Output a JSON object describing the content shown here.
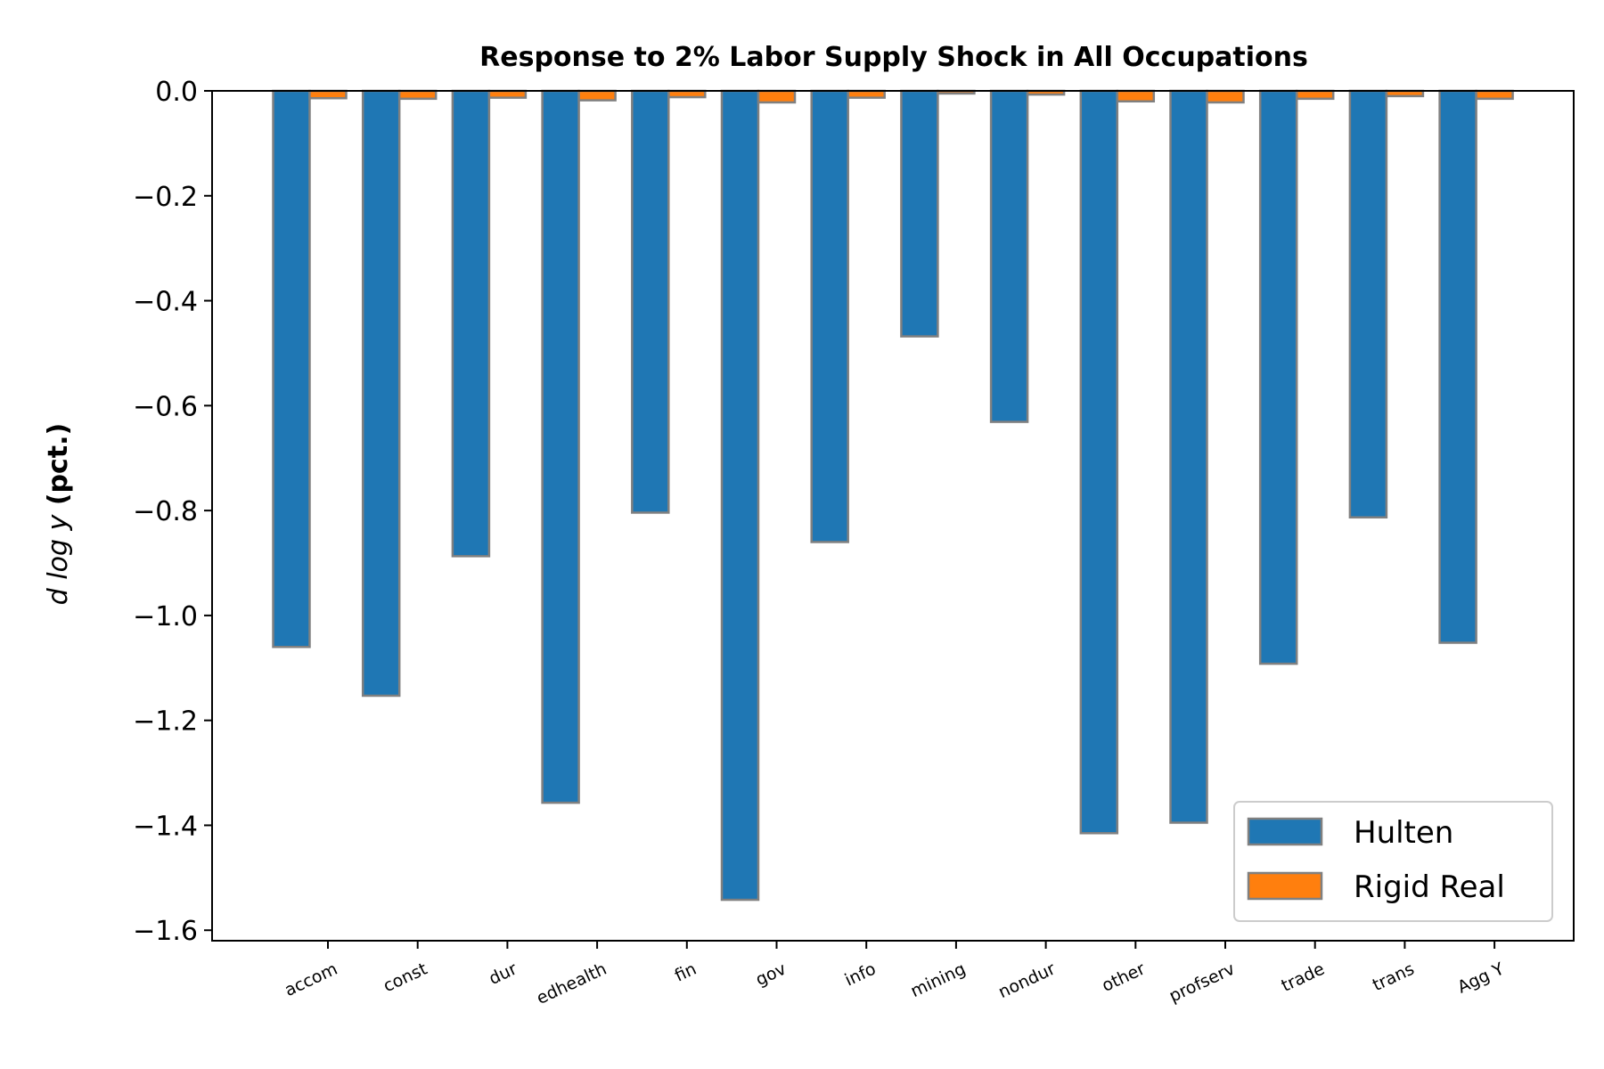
{
  "chart_data": {
    "type": "bar",
    "title": "Response to 2% Labor Supply Shock in All Occupations",
    "ylabel_math": "d log y",
    "ylabel_suffix": " (pct.)",
    "xlabel": "",
    "categories": [
      "accom",
      "const",
      "dur",
      "edhealth",
      "fin",
      "gov",
      "info",
      "mining",
      "nondur",
      "other",
      "profserv",
      "trade",
      "trans",
      "Agg Y"
    ],
    "series": [
      {
        "name": "Hulten",
        "color": "#1f77b4",
        "values": [
          -1.06,
          -1.153,
          -0.887,
          -1.357,
          -0.804,
          -1.542,
          -0.86,
          -0.468,
          -0.631,
          -1.415,
          -1.395,
          -1.092,
          -0.813,
          -1.052
        ]
      },
      {
        "name": "Rigid Real",
        "color": "#ff7f0e",
        "values": [
          -0.014,
          -0.015,
          -0.013,
          -0.018,
          -0.012,
          -0.022,
          -0.013,
          -0.005,
          -0.007,
          -0.02,
          -0.022,
          -0.015,
          -0.01,
          -0.015
        ]
      }
    ],
    "ylim": [
      -1.62,
      0.0
    ],
    "yticks": [
      0.0,
      -0.2,
      -0.4,
      -0.6,
      -0.8,
      -1.0,
      -1.2,
      -1.4,
      -1.6
    ],
    "ytick_labels": [
      "0.0",
      "−0.2",
      "−0.4",
      "−0.6",
      "−0.8",
      "−1.0",
      "−1.2",
      "−1.4",
      "−1.6"
    ],
    "grid": false,
    "legend_position": "lower-right",
    "bar_edge_color": "#808080"
  }
}
